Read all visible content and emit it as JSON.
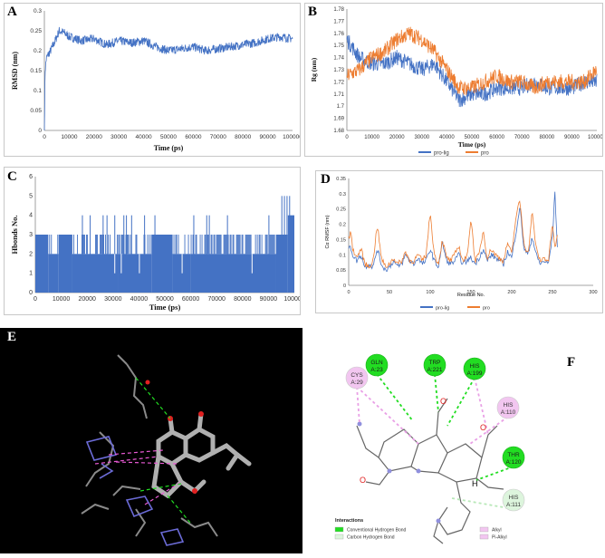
{
  "panels": {
    "A": {
      "label": "A"
    },
    "B": {
      "label": "B"
    },
    "C": {
      "label": "C"
    },
    "D": {
      "label": "D"
    },
    "E": {
      "label": "E"
    },
    "F": {
      "label": "F"
    }
  },
  "chart_data": [
    {
      "id": "A",
      "type": "line",
      "xlabel": "Time (ps)",
      "ylabel": "RMSD (nm)",
      "xlim": [
        0,
        100000
      ],
      "ylim": [
        0,
        0.3
      ],
      "xticks": [
        0,
        10000,
        20000,
        30000,
        40000,
        50000,
        60000,
        70000,
        80000,
        90000,
        100000
      ],
      "yticks": [
        0,
        0.05,
        0.1,
        0.15,
        0.2,
        0.25,
        0.3
      ],
      "yticklabels": [
        "0",
        "0.05",
        "0.1",
        "0.15",
        "0.2",
        "0.25",
        "0.3"
      ],
      "series": [
        {
          "name": "RMSD",
          "color": "#4472C4",
          "x": [
            0,
            300,
            800,
            1500,
            2500,
            4000,
            6000,
            8000,
            10000,
            15000,
            20000,
            25000,
            30000,
            35000,
            40000,
            45000,
            50000,
            55000,
            60000,
            65000,
            70000,
            75000,
            80000,
            85000,
            90000,
            95000,
            100000
          ],
          "y": [
            0.0,
            0.15,
            0.18,
            0.19,
            0.2,
            0.22,
            0.25,
            0.245,
            0.235,
            0.225,
            0.23,
            0.215,
            0.225,
            0.22,
            0.225,
            0.21,
            0.2,
            0.205,
            0.21,
            0.2,
            0.205,
            0.21,
            0.215,
            0.22,
            0.23,
            0.235,
            0.23
          ]
        }
      ]
    },
    {
      "id": "B",
      "type": "line",
      "xlabel": "Time (ps)",
      "ylabel": "Rg (nm)",
      "xlim": [
        0,
        100000
      ],
      "ylim": [
        1.68,
        1.78
      ],
      "xticks": [
        0,
        10000,
        20000,
        30000,
        40000,
        50000,
        60000,
        70000,
        80000,
        90000,
        100000
      ],
      "yticks": [
        1.68,
        1.69,
        1.7,
        1.71,
        1.72,
        1.73,
        1.74,
        1.75,
        1.76,
        1.77,
        1.78
      ],
      "yticklabels": [
        "1.68",
        "1.69",
        "1.7",
        "1.71",
        "1.72",
        "1.73",
        "1.74",
        "1.75",
        "1.76",
        "1.77",
        "1.78"
      ],
      "legend": [
        "pro-lig",
        "pro"
      ],
      "legend_position": "bottom",
      "series": [
        {
          "name": "pro-lig",
          "color": "#4472C4",
          "x": [
            0,
            5000,
            10000,
            15000,
            20000,
            25000,
            30000,
            35000,
            40000,
            45000,
            50000,
            55000,
            60000,
            65000,
            70000,
            75000,
            80000,
            85000,
            90000,
            95000,
            100000
          ],
          "y": [
            1.755,
            1.74,
            1.735,
            1.735,
            1.74,
            1.735,
            1.73,
            1.735,
            1.72,
            1.705,
            1.71,
            1.71,
            1.715,
            1.715,
            1.715,
            1.72,
            1.715,
            1.715,
            1.715,
            1.72,
            1.72
          ]
        },
        {
          "name": "pro",
          "color": "#ED7D31",
          "x": [
            0,
            5000,
            10000,
            15000,
            20000,
            25000,
            30000,
            35000,
            40000,
            45000,
            50000,
            55000,
            60000,
            65000,
            70000,
            75000,
            80000,
            85000,
            90000,
            95000,
            100000
          ],
          "y": [
            1.725,
            1.73,
            1.74,
            1.745,
            1.755,
            1.76,
            1.755,
            1.745,
            1.73,
            1.715,
            1.715,
            1.72,
            1.725,
            1.72,
            1.72,
            1.715,
            1.72,
            1.72,
            1.72,
            1.72,
            1.73
          ]
        }
      ]
    },
    {
      "id": "C",
      "type": "bar",
      "xlabel": "Time (ps)",
      "ylabel": "Hbonds No.",
      "xlim": [
        0,
        100000
      ],
      "ylim": [
        0,
        6
      ],
      "xticks": [
        0,
        10000,
        20000,
        30000,
        40000,
        50000,
        60000,
        70000,
        80000,
        90000,
        100000
      ],
      "yticks": [
        0,
        1,
        2,
        3,
        4,
        5,
        6
      ],
      "yticklabels": [
        "0",
        "1",
        "2",
        "3",
        "4",
        "5",
        "6"
      ],
      "series": [
        {
          "name": "Hbonds",
          "color": "#4472C4",
          "segments": [
            {
              "x0": 0,
              "x1": 5000,
              "base": 3
            },
            {
              "x0": 5000,
              "x1": 9000,
              "base": 2
            },
            {
              "x0": 9000,
              "x1": 14000,
              "base": 3
            },
            {
              "x0": 14000,
              "x1": 32000,
              "base": 2
            },
            {
              "x0": 32000,
              "x1": 45000,
              "base": 2
            },
            {
              "x0": 45000,
              "x1": 53000,
              "base": 3
            },
            {
              "x0": 53000,
              "x1": 60000,
              "base": 2
            },
            {
              "x0": 60000,
              "x1": 93000,
              "base": 2
            },
            {
              "x0": 93000,
              "x1": 97500,
              "base": 3
            },
            {
              "x0": 97500,
              "x1": 100000,
              "base": 4
            }
          ],
          "spikes": [
            {
              "x": 18000,
              "y": 4
            },
            {
              "x": 21000,
              "y": 4
            },
            {
              "x": 26000,
              "y": 4
            },
            {
              "x": 27500,
              "y": 4
            },
            {
              "x": 30500,
              "y": 4
            },
            {
              "x": 34000,
              "y": 4
            },
            {
              "x": 35000,
              "y": 4
            },
            {
              "x": 37000,
              "y": 4
            },
            {
              "x": 42000,
              "y": 4
            },
            {
              "x": 46000,
              "y": 4
            },
            {
              "x": 61000,
              "y": 4
            },
            {
              "x": 66000,
              "y": 4
            },
            {
              "x": 67000,
              "y": 4
            },
            {
              "x": 74000,
              "y": 4
            },
            {
              "x": 90000,
              "y": 4
            },
            {
              "x": 95000,
              "y": 5
            },
            {
              "x": 96000,
              "y": 5
            },
            {
              "x": 97000,
              "y": 5
            },
            {
              "x": 98000,
              "y": 5
            }
          ],
          "dips": [
            {
              "x": 30500,
              "y": 1
            },
            {
              "x": 33000,
              "y": 1
            },
            {
              "x": 40000,
              "y": 1
            },
            {
              "x": 56500,
              "y": 1
            },
            {
              "x": 83500,
              "y": 1
            }
          ]
        }
      ]
    },
    {
      "id": "D",
      "type": "line",
      "xlabel": "Residue No.",
      "ylabel": "Cα RMSF (nm)",
      "xlim": [
        0,
        300
      ],
      "ylim": [
        0,
        0.35
      ],
      "xticks": [
        0,
        50,
        100,
        150,
        200,
        250,
        300
      ],
      "yticks": [
        0,
        0.05,
        0.1,
        0.15,
        0.2,
        0.25,
        0.3,
        0.35
      ],
      "yticklabels": [
        "0",
        "0.05",
        "0.1",
        "0.15",
        "0.2",
        "0.25",
        "0.3",
        "0.35"
      ],
      "legend": [
        "pro-lig",
        "pro"
      ],
      "legend_position": "bottom",
      "series": [
        {
          "name": "pro-lig",
          "color": "#4472C4",
          "x": [
            1,
            5,
            10,
            15,
            20,
            25,
            30,
            35,
            40,
            45,
            50,
            55,
            60,
            65,
            70,
            75,
            80,
            85,
            90,
            95,
            100,
            105,
            110,
            115,
            120,
            125,
            130,
            135,
            140,
            145,
            150,
            155,
            160,
            165,
            170,
            175,
            180,
            185,
            190,
            195,
            200,
            205,
            210,
            215,
            220,
            225,
            230,
            235,
            240,
            245,
            250,
            253,
            256
          ],
          "y": [
            0.14,
            0.1,
            0.08,
            0.1,
            0.06,
            0.07,
            0.06,
            0.12,
            0.07,
            0.05,
            0.06,
            0.08,
            0.06,
            0.07,
            0.1,
            0.08,
            0.07,
            0.09,
            0.07,
            0.08,
            0.12,
            0.08,
            0.06,
            0.14,
            0.08,
            0.07,
            0.08,
            0.1,
            0.07,
            0.08,
            0.09,
            0.07,
            0.09,
            0.12,
            0.08,
            0.1,
            0.09,
            0.08,
            0.07,
            0.11,
            0.09,
            0.17,
            0.26,
            0.12,
            0.1,
            0.16,
            0.1,
            0.07,
            0.08,
            0.07,
            0.16,
            0.31,
            0.12
          ]
        },
        {
          "name": "pro",
          "color": "#ED7D31",
          "x": [
            1,
            5,
            10,
            15,
            20,
            25,
            30,
            35,
            40,
            45,
            50,
            55,
            60,
            65,
            70,
            75,
            80,
            85,
            90,
            95,
            100,
            105,
            110,
            115,
            120,
            125,
            130,
            135,
            140,
            145,
            150,
            155,
            160,
            165,
            170,
            175,
            180,
            185,
            190,
            195,
            200,
            205,
            210,
            215,
            220,
            225,
            230,
            235,
            240,
            245,
            250,
            253,
            256
          ],
          "y": [
            0.2,
            0.12,
            0.09,
            0.12,
            0.07,
            0.06,
            0.08,
            0.2,
            0.09,
            0.06,
            0.07,
            0.09,
            0.07,
            0.08,
            0.11,
            0.08,
            0.08,
            0.1,
            0.08,
            0.1,
            0.24,
            0.1,
            0.07,
            0.15,
            0.09,
            0.08,
            0.1,
            0.13,
            0.08,
            0.09,
            0.22,
            0.08,
            0.1,
            0.18,
            0.09,
            0.12,
            0.1,
            0.09,
            0.08,
            0.14,
            0.1,
            0.22,
            0.28,
            0.14,
            0.1,
            0.24,
            0.12,
            0.08,
            0.09,
            0.08,
            0.2,
            0.12,
            0.16
          ]
        }
      ]
    }
  ],
  "interactions": {
    "residues": [
      {
        "name": "GLN\nA:23",
        "line1": "GLN",
        "line2": "A:23",
        "type": "conventional_hbond",
        "color": "#22DD22",
        "text": "#1a1a1a"
      },
      {
        "name": "TRP\nA:221",
        "line1": "TRP",
        "line2": "A:221",
        "type": "conventional_hbond",
        "color": "#22DD22",
        "text": "#1a1a1a"
      },
      {
        "name": "HIS\nA:199",
        "line1": "HIS",
        "line2": "A:199",
        "type": "conventional_hbond",
        "color": "#22DD22",
        "text": "#1a1a1a"
      },
      {
        "name": "CYS\nA:29",
        "line1": "CYS",
        "line2": "A:29",
        "type": "alkyl",
        "color": "#F2C6F0",
        "text": "#333"
      },
      {
        "name": "HIS\nA:110",
        "line1": "HIS",
        "line2": "A:110",
        "type": "alkyl",
        "color": "#F2C6F0",
        "text": "#333"
      },
      {
        "name": "THR\nA:120",
        "line1": "THR",
        "line2": "A:120",
        "type": "conventional_hbond",
        "color": "#22DD22",
        "text": "#1a1a1a"
      },
      {
        "name": "HIS\nA:111",
        "line1": "HIS",
        "line2": "A:111",
        "type": "carbon_hbond",
        "color": "#DDF5DD",
        "text": "#333"
      }
    ],
    "atom_labels": {
      "O": "O",
      "H": "H"
    },
    "legend": {
      "title": "Interactions",
      "items": [
        {
          "label": "Conventional Hydrogen Bond",
          "color": "#22DD22"
        },
        {
          "label": "Carbon Hydrogen Bond",
          "color": "#DDF5DD"
        },
        {
          "label": "Alkyl",
          "color": "#F2C6F0"
        },
        {
          "label": "Pi-Alkyl",
          "color": "#F2C6F0"
        }
      ]
    }
  }
}
